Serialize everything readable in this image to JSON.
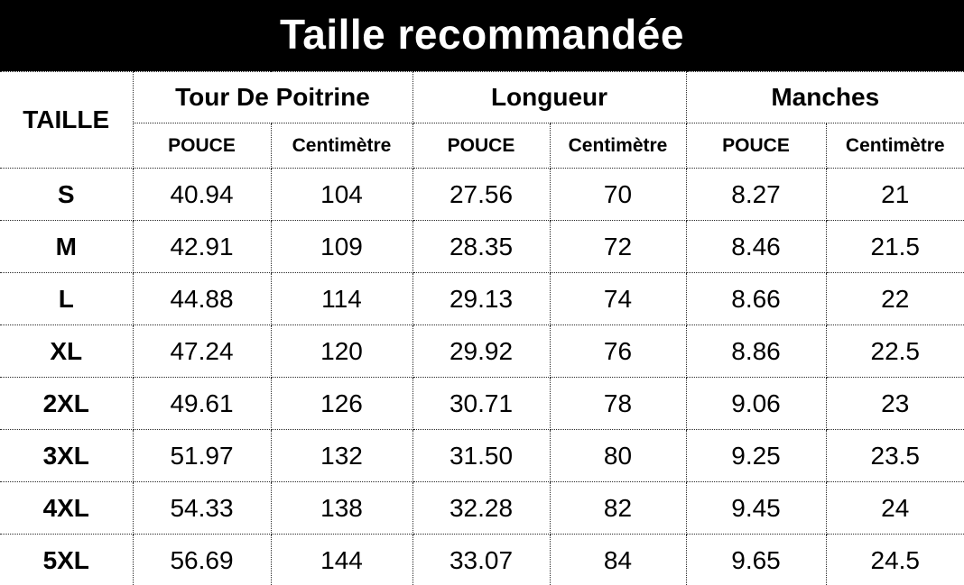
{
  "title": "Taille recommandée",
  "table": {
    "corner_header": "TAILLE",
    "groups": [
      {
        "label": "Tour De Poitrine"
      },
      {
        "label": "Longueur"
      },
      {
        "label": "Manches"
      }
    ],
    "subheaders": [
      "POUCE",
      "Centimètre",
      "POUCE",
      "Centimètre",
      "POUCE",
      "Centimètre"
    ],
    "rows": [
      {
        "size": "S",
        "values": [
          "40.94",
          "104",
          "27.56",
          "70",
          "8.27",
          "21"
        ]
      },
      {
        "size": "M",
        "values": [
          "42.91",
          "109",
          "28.35",
          "72",
          "8.46",
          "21.5"
        ]
      },
      {
        "size": "L",
        "values": [
          "44.88",
          "114",
          "29.13",
          "74",
          "8.66",
          "22"
        ]
      },
      {
        "size": "XL",
        "values": [
          "47.24",
          "120",
          "29.92",
          "76",
          "8.86",
          "22.5"
        ]
      },
      {
        "size": "2XL",
        "values": [
          "49.61",
          "126",
          "30.71",
          "78",
          "9.06",
          "23"
        ]
      },
      {
        "size": "3XL",
        "values": [
          "51.97",
          "132",
          "31.50",
          "80",
          "9.25",
          "23.5"
        ]
      },
      {
        "size": "4XL",
        "values": [
          "54.33",
          "138",
          "32.28",
          "82",
          "9.45",
          "24"
        ]
      },
      {
        "size": "5XL",
        "values": [
          "56.69",
          "144",
          "33.07",
          "84",
          "9.65",
          "24.5"
        ]
      }
    ]
  },
  "colors": {
    "title_bg": "#000000",
    "title_text": "#ffffff",
    "table_text": "#000000",
    "border": "#2a2a2a"
  }
}
